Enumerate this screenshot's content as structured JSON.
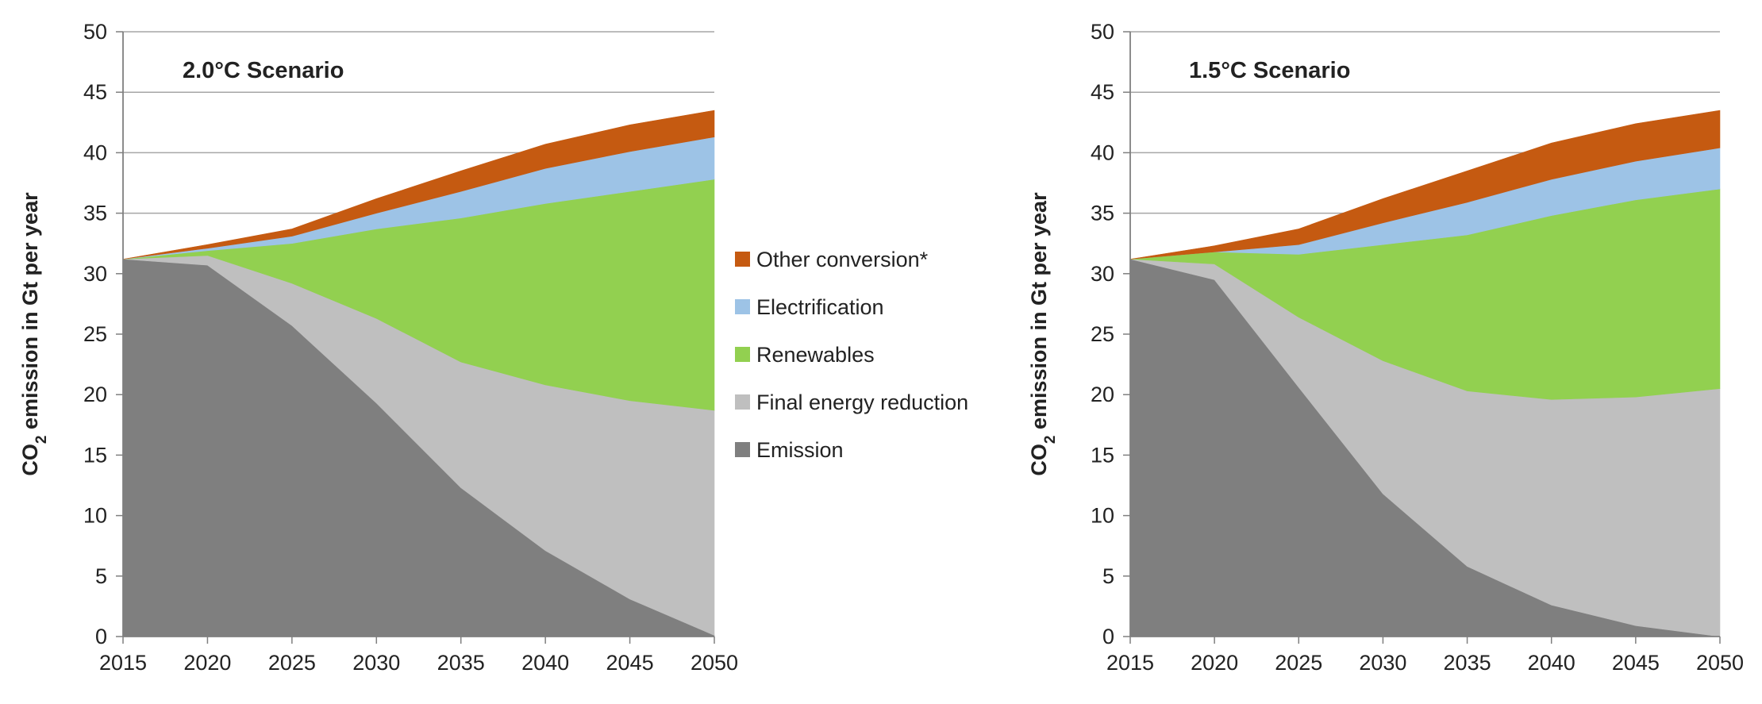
{
  "colors": {
    "emission": "#7f7f7f",
    "final_energy_reduction": "#bfbfbf",
    "renewables": "#92d050",
    "electrification": "#9dc3e6",
    "other_conversion": "#c55a11",
    "gridline": "#a6a6a6",
    "axis": "#7f7f7f"
  },
  "legend": {
    "items": [
      {
        "key": "other_conversion",
        "label": "Other conversion*"
      },
      {
        "key": "electrification",
        "label": "Electrification"
      },
      {
        "key": "renewables",
        "label": "Renewables"
      },
      {
        "key": "final_energy_reduction",
        "label": "Final energy reduction"
      },
      {
        "key": "emission",
        "label": "Emission"
      }
    ]
  },
  "chart_data": [
    {
      "type": "area",
      "stacked": true,
      "title": "2.0°C Scenario",
      "ylabel_main": "CO",
      "ylabel_sub": "2",
      "ylabel_rest": " emission in Gt per year",
      "xlabel": "",
      "ylim": [
        0,
        50
      ],
      "yticks": [
        0,
        5,
        10,
        15,
        20,
        25,
        30,
        35,
        40,
        45,
        50
      ],
      "grid": true,
      "categories": [
        "2015",
        "2020",
        "2025",
        "2030",
        "2035",
        "2040",
        "2045",
        "2050"
      ],
      "series": [
        {
          "key": "emission",
          "name": "Emission",
          "values": [
            31.2,
            30.7,
            25.7,
            19.3,
            12.3,
            7.1,
            3.1,
            0.1
          ]
        },
        {
          "key": "final_energy_reduction",
          "name": "Final energy reduction",
          "values": [
            0.0,
            0.8,
            3.5,
            7.0,
            10.4,
            13.7,
            16.4,
            18.6
          ]
        },
        {
          "key": "renewables",
          "name": "Renewables",
          "values": [
            0.0,
            0.4,
            3.3,
            7.4,
            11.9,
            15.0,
            17.3,
            19.1
          ]
        },
        {
          "key": "electrification",
          "name": "Electrification",
          "values": [
            0.0,
            0.2,
            0.6,
            1.3,
            2.2,
            2.9,
            3.3,
            3.5
          ]
        },
        {
          "key": "other_conversion",
          "name": "Other conversion*",
          "values": [
            0.0,
            0.3,
            0.6,
            1.2,
            1.7,
            2.0,
            2.2,
            2.2
          ]
        }
      ]
    },
    {
      "type": "area",
      "stacked": true,
      "title": "1.5°C Scenario",
      "ylabel_main": "CO",
      "ylabel_sub": "2",
      "ylabel_rest": " emission in Gt per year",
      "xlabel": "",
      "ylim": [
        0,
        50
      ],
      "yticks": [
        0,
        5,
        10,
        15,
        20,
        25,
        30,
        35,
        40,
        45,
        50
      ],
      "grid": true,
      "categories": [
        "2015",
        "2020",
        "2025",
        "2030",
        "2035",
        "2040",
        "2045",
        "2050"
      ],
      "series": [
        {
          "key": "emission",
          "name": "Emission",
          "values": [
            31.2,
            29.5,
            20.6,
            11.8,
            5.8,
            2.6,
            0.9,
            0.0
          ]
        },
        {
          "key": "final_energy_reduction",
          "name": "Final energy reduction",
          "values": [
            0.0,
            1.3,
            5.8,
            11.0,
            14.5,
            17.0,
            18.9,
            20.5
          ]
        },
        {
          "key": "renewables",
          "name": "Renewables",
          "values": [
            0.0,
            1.0,
            5.2,
            9.6,
            12.9,
            15.2,
            16.3,
            16.5
          ]
        },
        {
          "key": "electrification",
          "name": "Electrification",
          "values": [
            0.0,
            0.0,
            0.8,
            1.8,
            2.7,
            3.0,
            3.2,
            3.4
          ]
        },
        {
          "key": "other_conversion",
          "name": "Other conversion*",
          "values": [
            0.0,
            0.5,
            1.3,
            2.0,
            2.6,
            3.0,
            3.1,
            3.1
          ]
        }
      ]
    }
  ]
}
